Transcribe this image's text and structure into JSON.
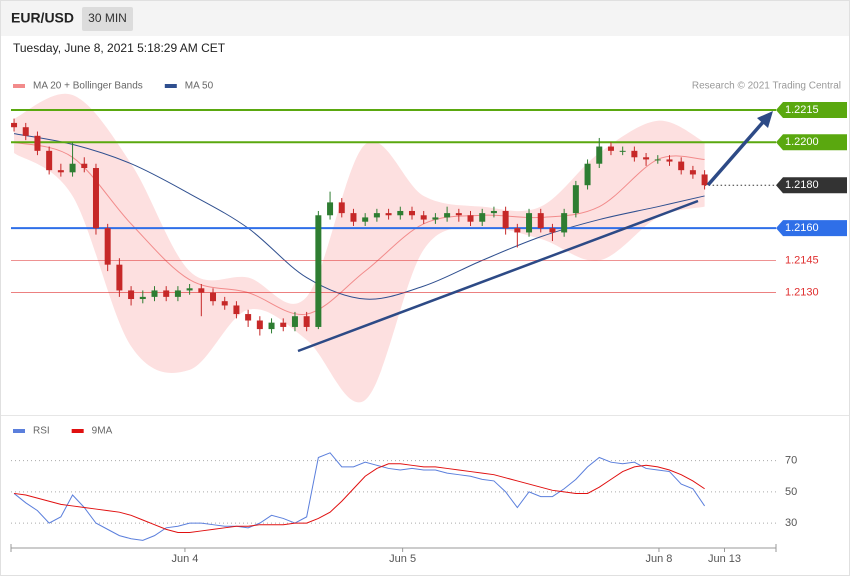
{
  "header": {
    "symbol": "EUR/USD",
    "interval": "30 MIN",
    "timestamp": "Tuesday, June 8, 2021 5:18:29 AM CET",
    "source": "Research © 2021 Trading Central"
  },
  "chart_data": [
    {
      "type": "candlestick",
      "ylim": [
        1.2073,
        1.2222
      ],
      "xlim": [
        -0.26,
        65.1
      ],
      "up_color": "#2e7d32",
      "down_color": "#c62828",
      "candles": [
        [
          1.2209,
          1.2211,
          1.2205,
          1.2207
        ],
        [
          1.2207,
          1.2209,
          1.2201,
          1.2203
        ],
        [
          1.2203,
          1.2205,
          1.2194,
          1.2196
        ],
        [
          1.2196,
          1.2198,
          1.2185,
          1.2187
        ],
        [
          1.2187,
          1.219,
          1.2184,
          1.2186
        ],
        [
          1.2186,
          1.22,
          1.2184,
          1.219
        ],
        [
          1.219,
          1.2193,
          1.2186,
          1.2188
        ],
        [
          1.2188,
          1.219,
          1.2157,
          1.216
        ],
        [
          1.216,
          1.2162,
          1.214,
          1.2143
        ],
        [
          1.2143,
          1.2146,
          1.2128,
          1.2131
        ],
        [
          1.2131,
          1.2133,
          1.2124,
          1.2127
        ],
        [
          1.2127,
          1.2131,
          1.2125,
          1.2128
        ],
        [
          1.2128,
          1.2133,
          1.2126,
          1.2131
        ],
        [
          1.2131,
          1.2133,
          1.2126,
          1.2128
        ],
        [
          1.2128,
          1.2133,
          1.2126,
          1.2131
        ],
        [
          1.2131,
          1.2134,
          1.2129,
          1.2132
        ],
        [
          1.2132,
          1.2134,
          1.2119,
          1.213
        ],
        [
          1.213,
          1.2132,
          1.2124,
          1.2126
        ],
        [
          1.2126,
          1.2128,
          1.2122,
          1.2124
        ],
        [
          1.2124,
          1.2126,
          1.2118,
          1.212
        ],
        [
          1.212,
          1.2122,
          1.2114,
          1.2117
        ],
        [
          1.2117,
          1.2119,
          1.211,
          1.2113
        ],
        [
          1.2113,
          1.2118,
          1.2111,
          1.2116
        ],
        [
          1.2116,
          1.2118,
          1.2112,
          1.2114
        ],
        [
          1.2114,
          1.2121,
          1.2112,
          1.2119
        ],
        [
          1.2119,
          1.2121,
          1.2112,
          1.2114
        ],
        [
          1.2114,
          1.2168,
          1.2113,
          1.2166
        ],
        [
          1.2166,
          1.2177,
          1.2164,
          1.2172
        ],
        [
          1.2172,
          1.2174,
          1.2165,
          1.2167
        ],
        [
          1.2167,
          1.2169,
          1.2161,
          1.2163
        ],
        [
          1.2163,
          1.2167,
          1.2161,
          1.2165
        ],
        [
          1.2165,
          1.2169,
          1.2163,
          1.2167
        ],
        [
          1.2167,
          1.2169,
          1.2164,
          1.2166
        ],
        [
          1.2166,
          1.217,
          1.2164,
          1.2168
        ],
        [
          1.2168,
          1.217,
          1.2164,
          1.2166
        ],
        [
          1.2166,
          1.2168,
          1.2162,
          1.2164
        ],
        [
          1.2164,
          1.2167,
          1.2162,
          1.2165
        ],
        [
          1.2165,
          1.217,
          1.2163,
          1.2167
        ],
        [
          1.2167,
          1.2169,
          1.2163,
          1.2166
        ],
        [
          1.2166,
          1.2168,
          1.2161,
          1.2163
        ],
        [
          1.2163,
          1.2169,
          1.2161,
          1.2167
        ],
        [
          1.2167,
          1.217,
          1.2165,
          1.2168
        ],
        [
          1.2168,
          1.217,
          1.2157,
          1.216
        ],
        [
          1.216,
          1.2162,
          1.2151,
          1.2158
        ],
        [
          1.2158,
          1.2169,
          1.2156,
          1.2167
        ],
        [
          1.2167,
          1.2169,
          1.2158,
          1.216
        ],
        [
          1.216,
          1.2162,
          1.2154,
          1.2158
        ],
        [
          1.2158,
          1.2169,
          1.2156,
          1.2167
        ],
        [
          1.2167,
          1.2182,
          1.2165,
          1.218
        ],
        [
          1.218,
          1.2192,
          1.2178,
          1.219
        ],
        [
          1.219,
          1.2202,
          1.2188,
          1.2198
        ],
        [
          1.2198,
          1.22,
          1.2194,
          1.2196
        ],
        [
          1.2196,
          1.2198,
          1.2194,
          1.2196
        ],
        [
          1.2196,
          1.2198,
          1.2191,
          1.2193
        ],
        [
          1.2193,
          1.2195,
          1.2189,
          1.2192
        ],
        [
          1.2192,
          1.2194,
          1.219,
          1.2192
        ],
        [
          1.2192,
          1.2194,
          1.2189,
          1.2191
        ],
        [
          1.2191,
          1.2193,
          1.2185,
          1.2187
        ],
        [
          1.2187,
          1.2189,
          1.2183,
          1.2185
        ],
        [
          1.2185,
          1.2187,
          1.2178,
          1.218
        ]
      ],
      "series_x": [
        0,
        5,
        10,
        15,
        20,
        25,
        30,
        35,
        40,
        45,
        50,
        55,
        59
      ],
      "series": [
        {
          "name": "MA 20 + Bollinger Bands",
          "color": "#f28b8b",
          "band_color": "#fde0e0",
          "values": [
            1.22,
            1.2193,
            1.2162,
            1.2136,
            1.213,
            1.212,
            1.214,
            1.2162,
            1.2166,
            1.2165,
            1.217,
            1.2192,
            1.2192
          ],
          "upper": [
            1.2211,
            1.2222,
            1.219,
            1.214,
            1.2137,
            1.2128,
            1.2199,
            1.2175,
            1.217,
            1.217,
            1.2195,
            1.221,
            1.22
          ],
          "lower": [
            1.2195,
            1.2175,
            1.2105,
            1.2094,
            1.2122,
            1.2108,
            1.208,
            1.215,
            1.216,
            1.2155,
            1.2145,
            1.2165,
            1.217
          ]
        },
        {
          "name": "MA 50",
          "color": "#2f4f8f",
          "values": [
            1.2204,
            1.2199,
            1.219,
            1.2176,
            1.216,
            1.2137,
            1.2127,
            1.2133,
            1.2145,
            1.2156,
            1.2164,
            1.217,
            1.2175
          ]
        }
      ],
      "levels": [
        1.2215,
        {
          "value": 1.22,
          "label": "1.2200"
        },
        {
          "value": 1.218,
          "label": "1.2180"
        },
        {
          "value": 1.216,
          "label": "1.2160"
        },
        1.2145,
        {
          "value": 1.213,
          "label": "1.2130"
        }
      ],
      "level_colors": [
        "#5aa80f",
        "#5aa80f",
        "#333333",
        "#2f6fe8",
        "#e03030",
        "#e03030"
      ],
      "level_tags": [
        true,
        true,
        true,
        true,
        false,
        false
      ],
      "level_dotted": [
        false,
        false,
        true,
        false,
        false,
        false
      ]
    },
    {
      "type": "line",
      "ylim": [
        16,
        80
      ],
      "yticks": [
        30,
        50,
        70
      ],
      "xlim": [
        -0.26,
        65.1
      ],
      "xticks": [
        {
          "value": 14.6,
          "label": "Jun 4"
        },
        {
          "value": 33.2,
          "label": "Jun 5"
        },
        {
          "value": 55.1,
          "label": "Jun 8"
        },
        {
          "value": 60.7,
          "label": "Jun 13"
        }
      ],
      "series": [
        {
          "name": "RSI",
          "color": "#5b7fdc",
          "values": [
            49,
            43,
            38,
            30,
            34,
            48,
            40,
            30,
            26,
            22,
            20,
            19,
            22,
            27,
            28,
            30,
            30,
            29,
            28,
            28,
            27,
            30,
            35,
            33,
            30,
            34,
            72,
            75,
            66,
            66,
            69,
            67,
            65,
            64,
            65,
            64,
            64,
            62,
            61,
            60,
            58,
            57,
            50,
            40,
            50,
            47,
            47,
            52,
            58,
            66,
            72,
            69,
            68,
            69,
            65,
            64,
            63,
            55,
            52,
            41
          ]
        },
        {
          "name": "9MA",
          "color": "#e01010",
          "values": [
            49,
            48,
            46,
            44,
            42,
            41,
            40,
            39,
            38,
            37,
            35,
            32,
            29,
            26,
            24,
            24,
            25,
            26,
            27,
            28,
            28,
            29,
            29,
            29,
            30,
            30,
            33,
            37,
            44,
            52,
            60,
            65,
            68,
            68,
            67,
            66,
            66,
            65,
            64,
            63,
            62,
            61,
            59,
            57,
            55,
            53,
            51,
            50,
            49,
            49,
            53,
            58,
            63,
            66,
            67,
            66,
            64,
            61,
            57,
            52
          ]
        }
      ]
    }
  ]
}
